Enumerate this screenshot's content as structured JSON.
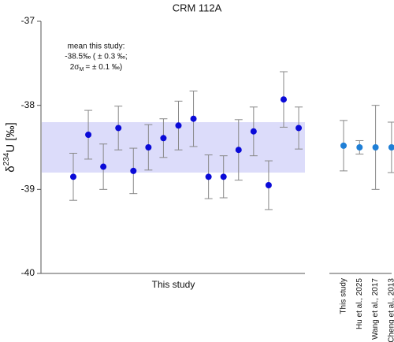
{
  "chart_data": [
    {
      "type": "errorbar",
      "title": "CRM 112A",
      "ylabel": {
        "main": "δ",
        "sup": "234",
        "rest": "U [‰]"
      },
      "xlabel": "This study",
      "categories": [
        null,
        null,
        null,
        null,
        null,
        null,
        null,
        null,
        null,
        null,
        null,
        null,
        null,
        null,
        null,
        null
      ],
      "values": [
        -38.85,
        -38.35,
        -38.73,
        -38.27,
        -38.78,
        -38.5,
        -38.39,
        -38.24,
        -38.16,
        -38.85,
        -38.85,
        -38.53,
        -38.31,
        -38.95,
        -37.93,
        -38.27
      ],
      "errors": [
        0.28,
        0.29,
        0.27,
        0.26,
        0.27,
        0.27,
        0.23,
        0.29,
        0.33,
        0.26,
        0.25,
        0.36,
        0.29,
        0.29,
        0.33,
        0.25
      ],
      "color": "#0a0ad8",
      "band": [
        -38.8,
        -38.2
      ],
      "band_color": "#dcdcfa",
      "annotation": {
        "line1": "mean this study:",
        "line2": "-38.5‰ ( ± 0.3 ‰;",
        "line3": {
          "prefix": "2σ",
          "sub": "M",
          "suffix": "= ± 0.1 ‰)"
        }
      },
      "ylim": [
        -40,
        -37
      ],
      "yticks": [
        -40,
        -39,
        -38,
        -37
      ]
    },
    {
      "type": "errorbar",
      "categories": [
        "This study",
        "Hu et al., 2025",
        "Wang et al., 2017",
        "Cheng et al., 2013"
      ],
      "values": [
        -38.48,
        -38.5,
        -38.5,
        -38.5
      ],
      "errors": [
        0.3,
        0.08,
        0.5,
        0.3
      ],
      "color": "#1f7fd6",
      "ylim": [
        -40,
        -37
      ]
    }
  ]
}
